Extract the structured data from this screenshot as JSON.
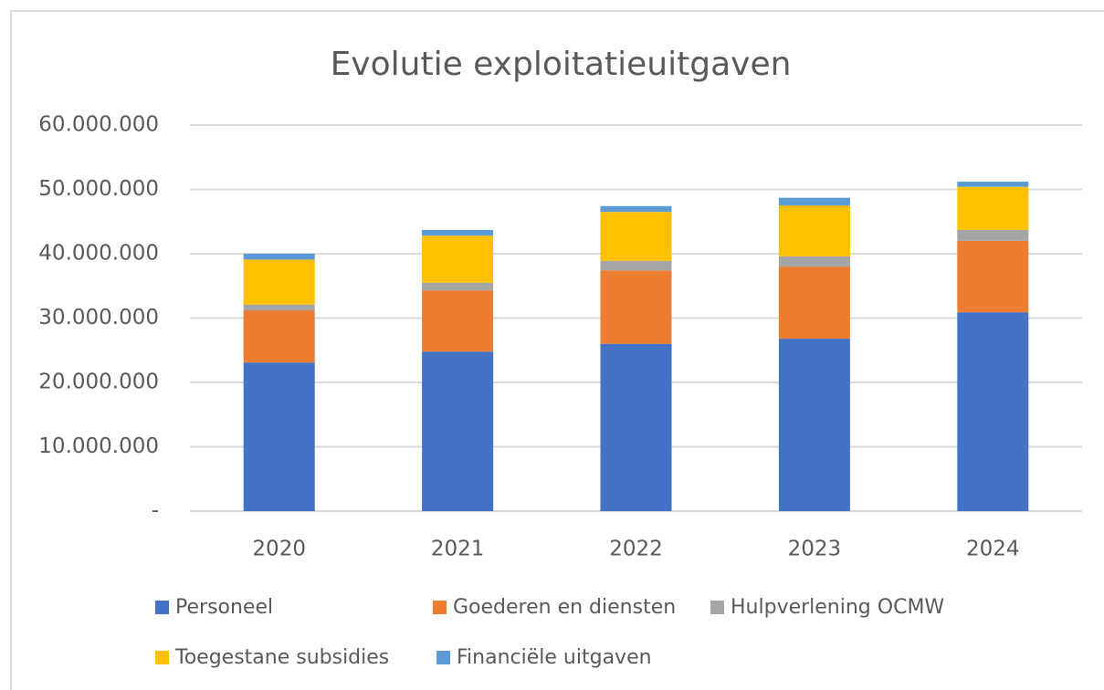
{
  "chart_data": {
    "type": "stacked_bar",
    "title": "Evolutie exploitatieuitgaven",
    "categories": [
      "2020",
      "2021",
      "2022",
      "2023",
      "2024"
    ],
    "series": [
      {
        "name": "Personeel",
        "color": "#4472c4",
        "values": [
          23100000,
          24800000,
          26000000,
          26800000,
          30900000
        ]
      },
      {
        "name": "Goederen en diensten",
        "color": "#ed7d31",
        "values": [
          8100000,
          9500000,
          11400000,
          11200000,
          11100000
        ]
      },
      {
        "name": "Hulpverlening OCMW",
        "color": "#a5a5a5",
        "values": [
          900000,
          1200000,
          1500000,
          1600000,
          1700000
        ]
      },
      {
        "name": "Toegestane subsidies",
        "color": "#ffc000",
        "values": [
          7000000,
          7300000,
          7600000,
          7900000,
          6700000
        ]
      },
      {
        "name": "Financiële uitgaven",
        "color": "#5b9bd5",
        "values": [
          900000,
          900000,
          900000,
          1200000,
          800000
        ]
      }
    ],
    "ylim": [
      0,
      60000000
    ],
    "yticks": [
      {
        "value": 0,
        "label": "-"
      },
      {
        "value": 10000000,
        "label": "10.000.000"
      },
      {
        "value": 20000000,
        "label": "20.000.000"
      },
      {
        "value": 30000000,
        "label": "30.000.000"
      },
      {
        "value": 40000000,
        "label": "40.000.000"
      },
      {
        "value": 50000000,
        "label": "50.000.000"
      },
      {
        "value": 60000000,
        "label": "60.000.000"
      }
    ],
    "grid": true,
    "legend": "bottom"
  }
}
